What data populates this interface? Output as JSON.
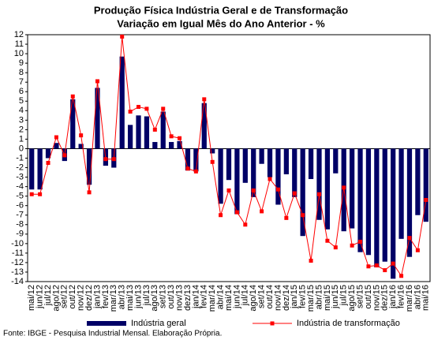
{
  "chart_data": {
    "type": "bar",
    "title": "Produção Física Indústria Geral e de Transformação",
    "subtitle": "Variação em Igual Mês do Ano Anterior - %",
    "source": "Fonte: IBGE - Pesquisa Industrial Mensal. Elaboração Própria.",
    "categories": [
      "mai/12",
      "jun/12",
      "jul/12",
      "ago/12",
      "set/12",
      "out/12",
      "nov/12",
      "dez/12",
      "jan/13",
      "fev/13",
      "mar/13",
      "abr/13",
      "mai/13",
      "jun/13",
      "jul/13",
      "ago/13",
      "set/13",
      "out/13",
      "nov/13",
      "dez/13",
      "jan/14",
      "fev/14",
      "mar/14",
      "abr/14",
      "mai/14",
      "jun/14",
      "jul/14",
      "ago/14",
      "set/14",
      "out/14",
      "nov/14",
      "dez/14",
      "jan/15",
      "fev/15",
      "mar/15",
      "abr/15",
      "mai/15",
      "jun/15",
      "jul/15",
      "ago/15",
      "set/15",
      "out/15",
      "nov/15",
      "dez/15",
      "jan/16",
      "fev/16",
      "mar/16",
      "abr/16",
      "mai/16"
    ],
    "series": [
      {
        "name": "Indústria geral",
        "type": "bar",
        "color": "#000066",
        "values": [
          -4.3,
          -4.3,
          -1.0,
          0.6,
          -1.3,
          5.2,
          0.5,
          -3.8,
          6.4,
          -1.8,
          -2.0,
          9.7,
          2.5,
          3.5,
          3.4,
          0.7,
          3.9,
          0.7,
          0.8,
          -2.3,
          -2.4,
          4.8,
          -0.5,
          -5.8,
          -3.3,
          -6.9,
          -3.6,
          -5.1,
          -1.6,
          -3.0,
          -5.9,
          -2.7,
          -5.1,
          -9.2,
          -3.2,
          -7.5,
          -8.5,
          -2.6,
          -8.7,
          -8.4,
          -10.9,
          -11.2,
          -12.5,
          -11.9,
          -13.7,
          -9.5,
          -11.4,
          -7.0,
          -7.7
        ]
      },
      {
        "name": "Indústria de transformação",
        "type": "line",
        "color": "#ff0000",
        "values": [
          -4.8,
          -4.8,
          -1.5,
          1.2,
          -0.7,
          5.5,
          1.4,
          -4.6,
          7.1,
          -1.1,
          -1.1,
          11.8,
          3.9,
          4.4,
          4.2,
          2.0,
          4.2,
          1.3,
          1.1,
          -2.1,
          -2.4,
          5.2,
          -1.4,
          -7.0,
          -4.4,
          -6.7,
          -8.0,
          -4.4,
          -6.6,
          -3.2,
          -4.3,
          -7.3,
          -4.7,
          -7.0,
          -11.8,
          -4.8,
          -9.7,
          -10.4,
          -4.1,
          -10.2,
          -9.8,
          -12.4,
          -12.3,
          -12.8,
          -12.1,
          -13.4,
          -9.4,
          -10.7,
          -5.4
        ]
      }
    ],
    "ylim": [
      -14,
      12
    ],
    "yticks": [
      -14,
      -13,
      -12,
      -11,
      -10,
      -9,
      -8,
      -7,
      -6,
      -5,
      -4,
      -3,
      -2,
      -1,
      0,
      1,
      2,
      3,
      4,
      5,
      6,
      7,
      8,
      9,
      10,
      11,
      12
    ],
    "grid": false,
    "legend": "bottom"
  }
}
